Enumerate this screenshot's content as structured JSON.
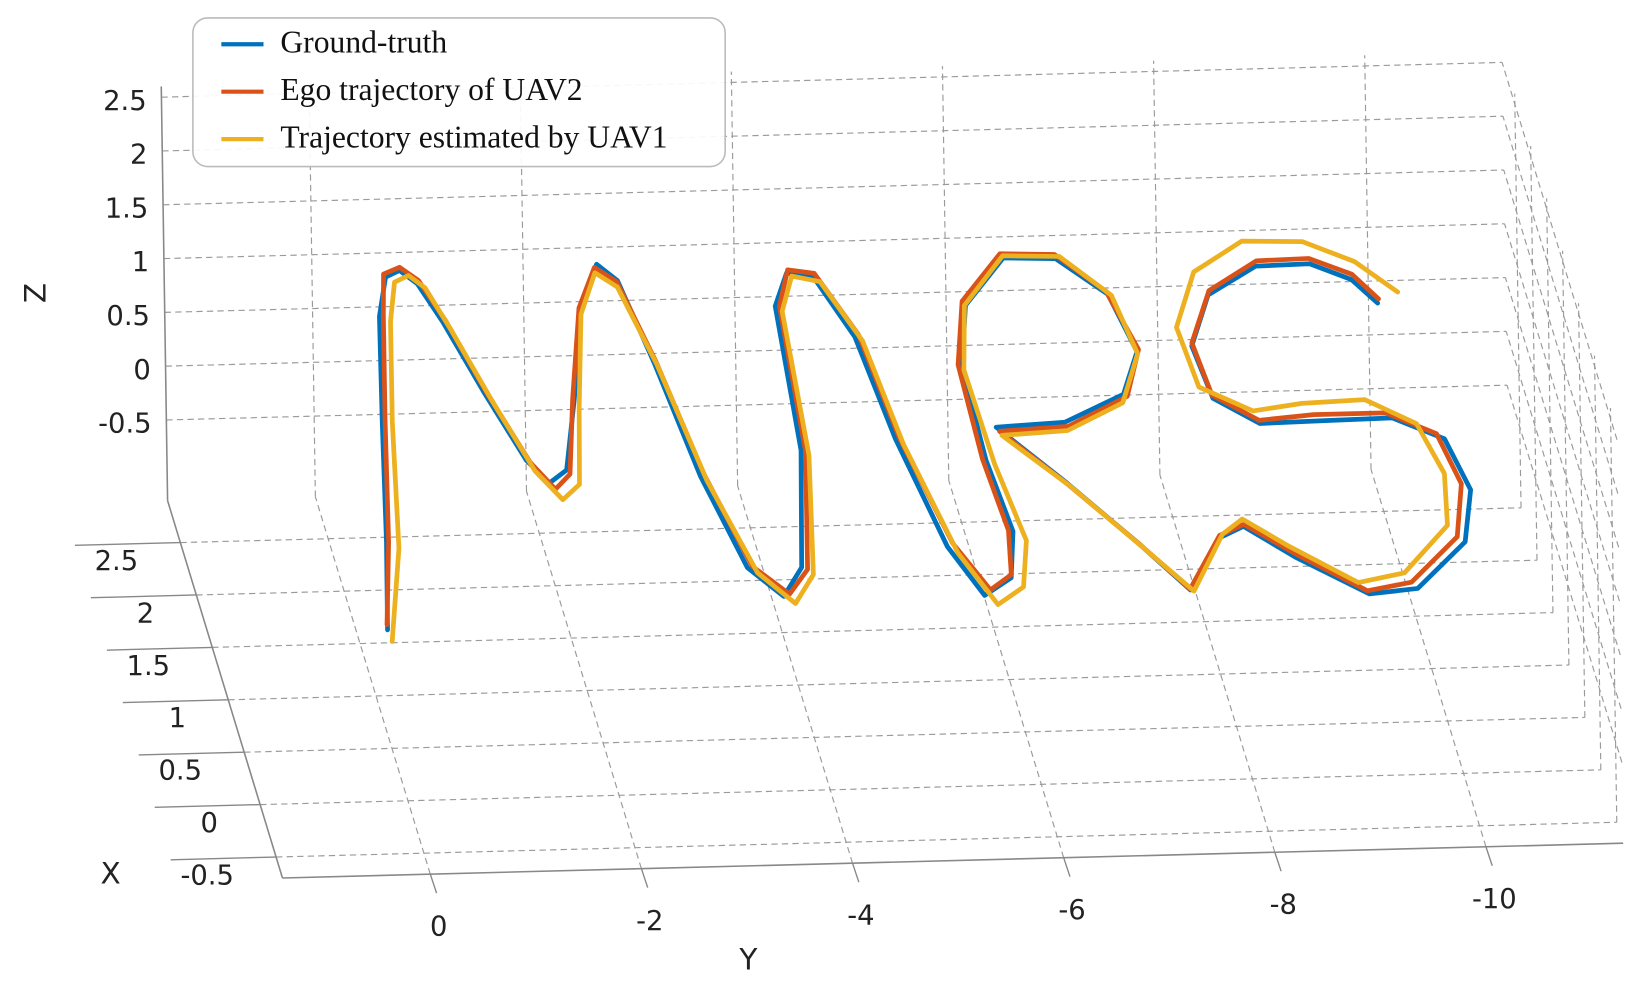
{
  "chart_data": {
    "type": "line3d",
    "xlabel": "X",
    "ylabel": "Y",
    "zlabel": "Z",
    "xlim": [
      -0.7,
      2.9
    ],
    "ylim": [
      1.4,
      -11.3
    ],
    "zlim": [
      -1.25,
      2.6
    ],
    "xticks": [
      -0.5,
      0,
      0.5,
      1,
      1.5,
      2,
      2.5
    ],
    "yticks": [
      0,
      -2,
      -4,
      -6,
      -8,
      -10
    ],
    "zticks": [
      -0.5,
      0,
      0.5,
      1,
      1.5,
      2,
      2.5
    ],
    "grid": true,
    "legend": "upper left",
    "series": [
      {
        "name": "Ground-truth",
        "color": "#0072BD",
        "x": [
          -0.67,
          0.16,
          1.32,
          2.3,
          2.67,
          2.73,
          2.6,
          2.23,
          1.54,
          0.9,
          0.68,
          0.8,
          1.48,
          2.35,
          2.74,
          2.58,
          1.79,
          0.71,
          -0.17,
          -0.45,
          -0.18,
          0.93,
          2.3,
          2.61,
          2.57,
          1.99,
          1.01,
          -0.02,
          -0.49,
          -0.33,
          0.11,
          0.79,
          1.68,
          2.26,
          2.7,
          2.68,
          2.33,
          1.78,
          1.38,
          1.13,
          1.1,
          0.57,
          -0.03,
          -0.49,
          0.0,
          0.1,
          -0.21,
          -0.57,
          -0.53,
          -0.1,
          0.39,
          0.88,
          1.09,
          1.08,
          1.07,
          1.32,
          1.82,
          2.3,
          2.56,
          2.57,
          2.41,
          2.18
        ],
        "y": [
          0.36,
          0.12,
          -0.19,
          -0.46,
          -0.63,
          -0.78,
          -0.91,
          -1.04,
          -1.23,
          -1.43,
          -1.58,
          -1.78,
          -2.06,
          -2.38,
          -2.65,
          -2.8,
          -2.91,
          -3.02,
          -3.2,
          -3.46,
          -3.71,
          -4.04,
          -4.21,
          -4.41,
          -4.65,
          -4.87,
          -4.96,
          -5.14,
          -5.35,
          -5.65,
          -5.8,
          -5.75,
          -5.79,
          -6.0,
          -6.49,
          -6.98,
          -7.37,
          -7.48,
          -7.23,
          -6.6,
          -5.94,
          -6.43,
          -6.94,
          -7.3,
          -7.73,
          -7.98,
          -8.39,
          -8.97,
          -9.44,
          -10.02,
          -10.22,
          -10.12,
          -9.69,
          -8.99,
          -8.43,
          -8.06,
          -8.01,
          -8.31,
          -8.84,
          -9.35,
          -9.7,
          -9.88
        ],
        "z": [
          1,
          1,
          1,
          1,
          1,
          1,
          1,
          1,
          1,
          1,
          1,
          1,
          1,
          1,
          1,
          1,
          1,
          1,
          1,
          1,
          1,
          1,
          1,
          1,
          1,
          1,
          1,
          1,
          1,
          1,
          1,
          1,
          1,
          1,
          1,
          1,
          1,
          1,
          1,
          1,
          1,
          1,
          1,
          1,
          1,
          1,
          1,
          1,
          1,
          1,
          1,
          1,
          1,
          1,
          1,
          1,
          1,
          1,
          1,
          1,
          1,
          1
        ]
      },
      {
        "name": "Ego trajectory of UAV2",
        "color": "#D95319",
        "x": [
          -0.62,
          0.16,
          1.33,
          2.31,
          2.7,
          2.76,
          2.63,
          2.24,
          1.55,
          0.88,
          0.62,
          0.76,
          1.47,
          2.33,
          2.71,
          2.57,
          1.8,
          0.72,
          -0.16,
          -0.43,
          -0.2,
          0.92,
          2.3,
          2.64,
          2.6,
          2.01,
          1.02,
          0.01,
          -0.44,
          -0.3,
          0.12,
          0.8,
          1.7,
          2.3,
          2.74,
          2.72,
          2.36,
          1.8,
          1.36,
          1.09,
          1.06,
          0.55,
          -0.04,
          -0.48,
          0.02,
          0.12,
          -0.18,
          -0.54,
          -0.47,
          -0.05,
          0.45,
          0.93,
          1.14,
          1.14,
          1.1,
          1.35,
          1.85,
          2.34,
          2.61,
          2.62,
          2.46,
          2.22
        ],
        "y": [
          0.35,
          0.1,
          -0.22,
          -0.5,
          -0.62,
          -0.79,
          -0.93,
          -1.07,
          -1.25,
          -1.46,
          -1.62,
          -1.8,
          -2.04,
          -2.36,
          -2.62,
          -2.79,
          -2.93,
          -3.06,
          -3.25,
          -3.52,
          -3.76,
          -4.08,
          -4.25,
          -4.43,
          -4.67,
          -4.91,
          -5.0,
          -5.2,
          -5.42,
          -5.66,
          -5.76,
          -5.72,
          -5.76,
          -5.98,
          -6.47,
          -6.98,
          -7.36,
          -7.5,
          -7.26,
          -6.62,
          -5.96,
          -6.44,
          -6.95,
          -7.3,
          -7.73,
          -7.99,
          -8.4,
          -8.96,
          -9.4,
          -9.96,
          -10.15,
          -10.06,
          -9.64,
          -8.96,
          -8.43,
          -8.06,
          -8.02,
          -8.33,
          -8.86,
          -9.36,
          -9.72,
          -9.9
        ],
        "z": [
          1,
          1,
          1,
          1,
          1,
          1,
          1,
          1,
          1,
          1,
          1,
          1,
          1,
          1,
          1,
          1,
          1,
          1,
          1,
          1,
          1,
          1,
          1,
          1,
          1,
          1,
          1,
          1,
          1,
          1,
          1,
          1,
          1,
          1,
          1,
          1,
          1,
          1,
          1,
          1,
          1,
          1,
          1,
          1,
          1,
          1,
          1,
          1,
          1,
          1,
          1,
          1,
          1,
          1,
          1,
          1,
          1,
          1,
          1,
          1,
          1,
          1
        ]
      },
      {
        "name": "Trajectory estimated by UAV1",
        "color": "#EDB120",
        "x": [
          -0.78,
          0.1,
          1.3,
          2.25,
          2.62,
          2.68,
          2.56,
          2.17,
          1.5,
          0.8,
          0.52,
          0.66,
          1.4,
          2.27,
          2.66,
          2.52,
          1.78,
          0.66,
          -0.22,
          -0.52,
          -0.25,
          0.88,
          2.25,
          2.58,
          2.52,
          1.95,
          0.96,
          -0.08,
          -0.58,
          -0.42,
          0.02,
          0.75,
          1.65,
          2.26,
          2.72,
          2.7,
          2.32,
          1.76,
          1.3,
          1.05,
          1.02,
          0.52,
          -0.08,
          -0.5,
          0.03,
          0.17,
          -0.1,
          -0.46,
          -0.38,
          0.06,
          0.55,
          1.03,
          1.27,
          1.25,
          1.19,
          1.43,
          2.0,
          2.52,
          2.8,
          2.78,
          2.58,
          2.28
        ],
        "y": [
          0.35,
          0.02,
          -0.28,
          -0.55,
          -0.7,
          -0.85,
          -0.97,
          -1.09,
          -1.27,
          -1.48,
          -1.66,
          -1.86,
          -2.08,
          -2.36,
          -2.61,
          -2.78,
          -2.93,
          -3.07,
          -3.28,
          -3.55,
          -3.8,
          -4.1,
          -4.26,
          -4.45,
          -4.7,
          -4.93,
          -5.02,
          -5.22,
          -5.45,
          -5.74,
          -5.9,
          -5.82,
          -5.8,
          -5.99,
          -6.49,
          -7.02,
          -7.4,
          -7.48,
          -7.2,
          -6.6,
          -5.97,
          -6.47,
          -6.98,
          -7.33,
          -7.76,
          -7.99,
          -8.35,
          -8.9,
          -9.36,
          -9.9,
          -10.02,
          -9.9,
          -9.48,
          -8.88,
          -8.4,
          -7.96,
          -7.92,
          -8.24,
          -8.78,
          -9.35,
          -9.78,
          -10.1
        ],
        "z": [
          1,
          1,
          1,
          1,
          1,
          1,
          1,
          1,
          1,
          1,
          1,
          1,
          1,
          1,
          1,
          1,
          1,
          1,
          1,
          1,
          1,
          1,
          1,
          1,
          1,
          1,
          1,
          1,
          1,
          1,
          1,
          1,
          1,
          1,
          1,
          1,
          1,
          1,
          1,
          1,
          1,
          1,
          1,
          1,
          1,
          1,
          1,
          1,
          1,
          1,
          1,
          1,
          1,
          1,
          1,
          1,
          1,
          1,
          1,
          1,
          1,
          1
        ]
      }
    ]
  }
}
